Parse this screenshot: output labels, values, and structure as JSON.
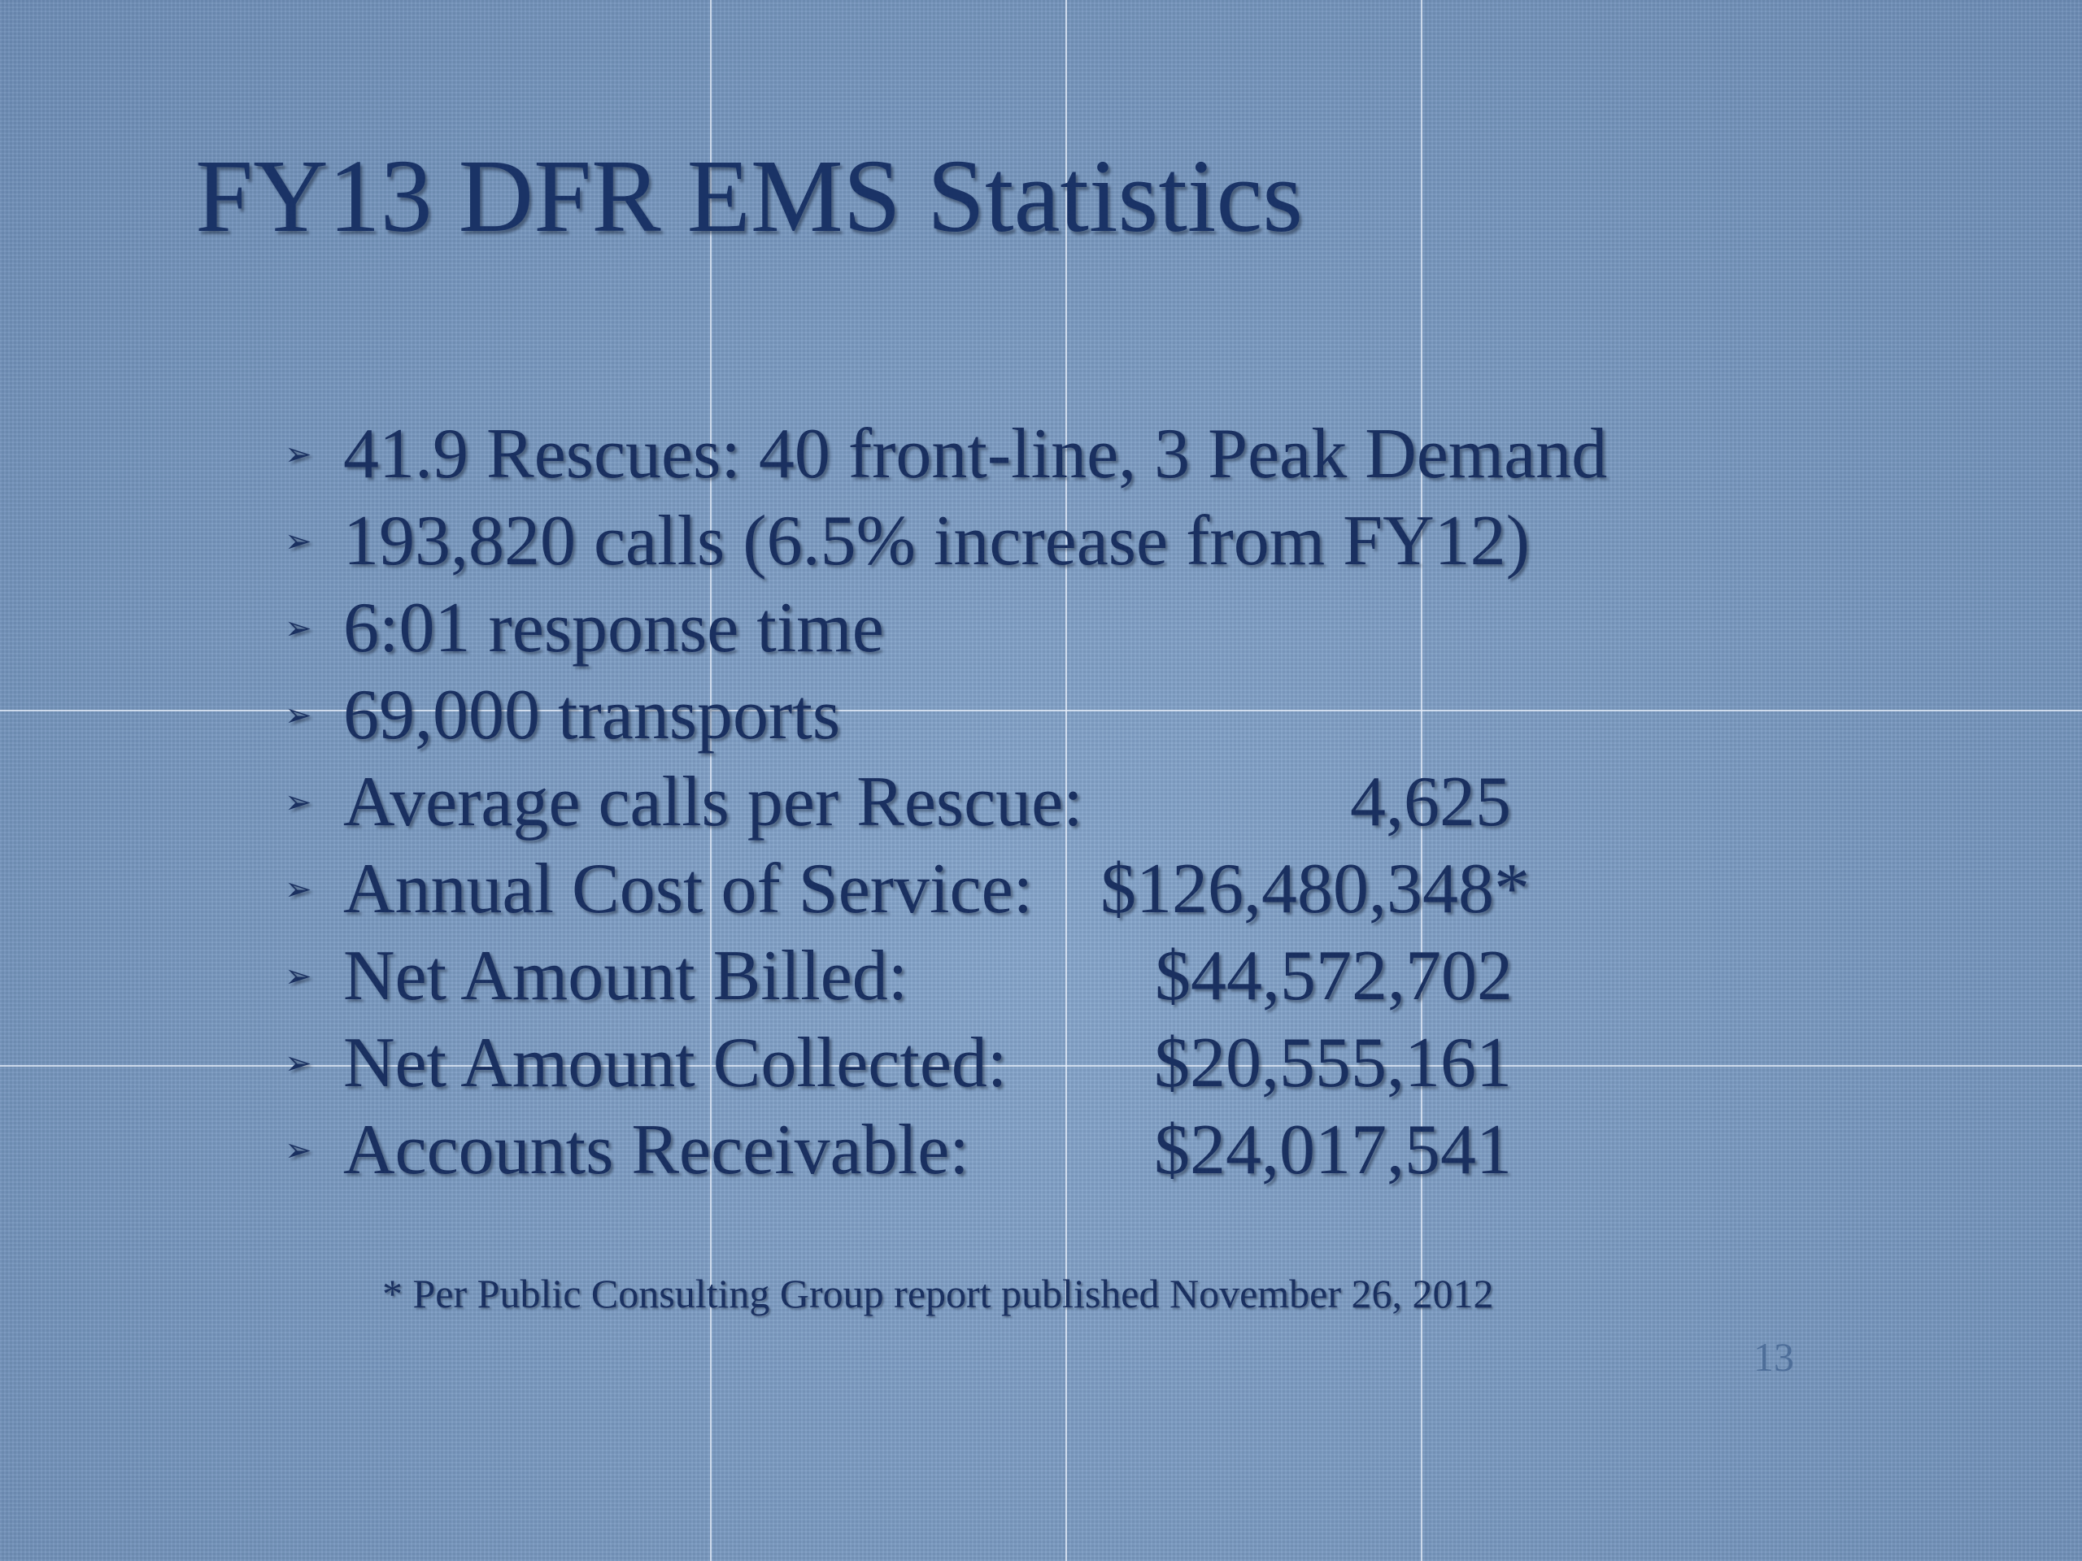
{
  "slide": {
    "title": "FY13 DFR EMS Statistics",
    "bullet_marker": "➢",
    "bullets": [
      {
        "label": "41.9 Rescues:  40 front-line, 3 Peak Demand",
        "value": ""
      },
      {
        "label": "193,820 calls (6.5% increase from FY12)",
        "value": ""
      },
      {
        "label": "6:01 response time",
        "value": ""
      },
      {
        "label": "69,000 transports",
        "value": ""
      },
      {
        "label": "Average calls per Rescue:",
        "value": "4,625"
      },
      {
        "label": "Annual Cost of Service:",
        "value": "$126,480,348*"
      },
      {
        "label": "Net Amount Billed:",
        "value": "$44,572,702"
      },
      {
        "label": "Net Amount Collected:",
        "value": "$20,555,161"
      },
      {
        "label": "Accounts Receivable:",
        "value": "$24,017,541"
      }
    ],
    "footnote": "* Per  Public Consulting Group report published November 26, 2012",
    "slide_number": "13"
  },
  "colors": {
    "background": "#7d9cc2",
    "title_text": "#1a3366",
    "body_text": "#1a3060",
    "slide_number_text": "#4e6e99",
    "gridlines": "#ebf2fc"
  }
}
